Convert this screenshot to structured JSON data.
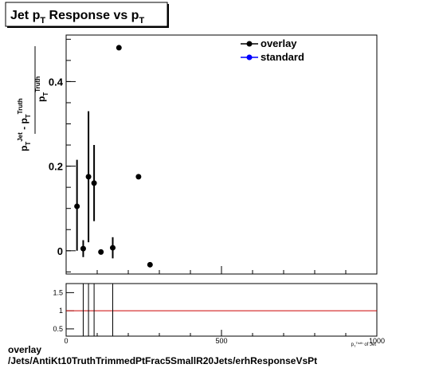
{
  "chart_data": [
    {
      "type": "scatter",
      "title": "Jet p_T Response vs p_T",
      "title_main": "Jet p",
      "title_sub": "T",
      "title_rest": " Response vs p",
      "title_sub2": "T",
      "ylabel": "(p_T^Jet - p_T^Truth) / p_T^Truth",
      "xlabel": "p_T^Truth of Jet",
      "xlim": [
        0,
        1000
      ],
      "ylim": [
        -0.055,
        0.51
      ],
      "yticks": [
        0,
        0.2,
        0.4
      ],
      "ytick_labels": [
        "0",
        "0.2",
        "0.4"
      ],
      "legend_position": "top-right",
      "series": [
        {
          "name": "overlay",
          "color": "#000000",
          "points": [
            {
              "x": 35,
              "y": 0.105,
              "ylo": 0.0,
              "yhi": 0.215
            },
            {
              "x": 55,
              "y": 0.005,
              "ylo": -0.015,
              "yhi": 0.025
            },
            {
              "x": 72,
              "y": 0.175,
              "ylo": 0.02,
              "yhi": 0.33
            },
            {
              "x": 90,
              "y": 0.16,
              "ylo": 0.07,
              "yhi": 0.25
            },
            {
              "x": 112,
              "y": -0.003,
              "ylo": -0.003,
              "yhi": -0.003
            },
            {
              "x": 150,
              "y": 0.007,
              "ylo": -0.018,
              "yhi": 0.032
            },
            {
              "x": 170,
              "y": 0.48,
              "ylo": 0.48,
              "yhi": 0.48
            },
            {
              "x": 233,
              "y": 0.175,
              "ylo": 0.175,
              "yhi": 0.175
            },
            {
              "x": 270,
              "y": -0.033,
              "ylo": -0.033,
              "yhi": -0.033
            }
          ]
        },
        {
          "name": "standard",
          "color": "#0000ff",
          "points": []
        }
      ]
    },
    {
      "type": "line",
      "panel": "ratio",
      "xlim": [
        0,
        1000
      ],
      "ylim": [
        0.3,
        1.75
      ],
      "yticks": [
        0.5,
        1,
        1.5
      ],
      "ytick_labels": [
        "0.5",
        "1",
        "1.5"
      ],
      "xticks": [
        0,
        500,
        1000
      ],
      "xtick_labels": [
        "0",
        "500",
        "1000"
      ],
      "xlabel": "p_T^Truth of Jet",
      "reference_line": {
        "y": 1,
        "color": "#cc0000"
      },
      "vertical_markers": [
        55,
        72,
        90,
        150
      ]
    }
  ],
  "caption": {
    "line1": "overlay",
    "line2": "/Jets/AntiKt10TruthTrimmedPtFrac5SmallR20Jets/erhResponseVsPt"
  },
  "colors": {
    "overlay": "#000000",
    "standard": "#0000ff",
    "reference": "#cc0000"
  }
}
